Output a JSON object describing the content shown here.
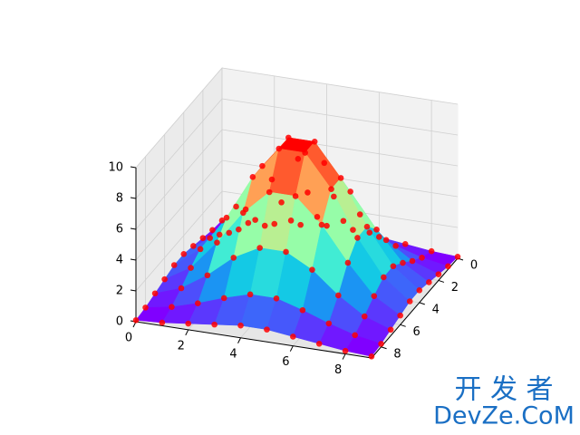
{
  "chart_data": {
    "type": "surface3d",
    "x": [
      0,
      1,
      2,
      3,
      4,
      5,
      6,
      7,
      8,
      9
    ],
    "y": [
      0,
      1,
      2,
      3,
      4,
      5,
      6,
      7,
      8,
      9
    ],
    "z": [
      [
        0.1,
        0.2,
        0.4,
        0.6,
        0.8,
        0.8,
        0.6,
        0.4,
        0.2,
        0.1
      ],
      [
        0.2,
        0.5,
        1.0,
        1.6,
        2.1,
        2.1,
        1.6,
        1.0,
        0.5,
        0.2
      ],
      [
        0.4,
        1.0,
        2.1,
        3.5,
        4.4,
        4.4,
        3.5,
        2.1,
        1.0,
        0.4
      ],
      [
        0.6,
        1.6,
        3.5,
        5.7,
        7.3,
        7.3,
        5.7,
        3.5,
        1.6,
        0.6
      ],
      [
        0.8,
        2.1,
        4.4,
        7.3,
        9.4,
        9.4,
        7.3,
        4.4,
        2.1,
        0.8
      ],
      [
        0.8,
        2.1,
        4.4,
        7.3,
        9.4,
        9.4,
        7.3,
        4.4,
        2.1,
        0.8
      ],
      [
        0.6,
        1.6,
        3.5,
        5.7,
        7.3,
        7.3,
        5.7,
        3.5,
        1.6,
        0.6
      ],
      [
        0.4,
        1.0,
        2.1,
        3.5,
        4.4,
        4.4,
        3.5,
        2.1,
        1.0,
        0.4
      ],
      [
        0.2,
        0.5,
        1.0,
        1.6,
        2.1,
        2.1,
        1.6,
        1.0,
        0.5,
        0.2
      ],
      [
        0.1,
        0.2,
        0.4,
        0.6,
        0.8,
        0.8,
        0.6,
        0.4,
        0.2,
        0.1
      ]
    ],
    "colormap": "rainbow",
    "point_color": "#ff0000",
    "xlim": [
      0,
      9
    ],
    "ylim": [
      0,
      9
    ],
    "zlim": [
      0,
      10
    ],
    "xticks": [
      0,
      2,
      4,
      6,
      8
    ],
    "yticks": [
      0,
      2,
      4,
      6,
      8
    ],
    "zticks": [
      0,
      2,
      4,
      6,
      8,
      10
    ],
    "grid": true
  },
  "watermark": {
    "line1": "开 发 者",
    "line2": "DevZe.CoM"
  }
}
